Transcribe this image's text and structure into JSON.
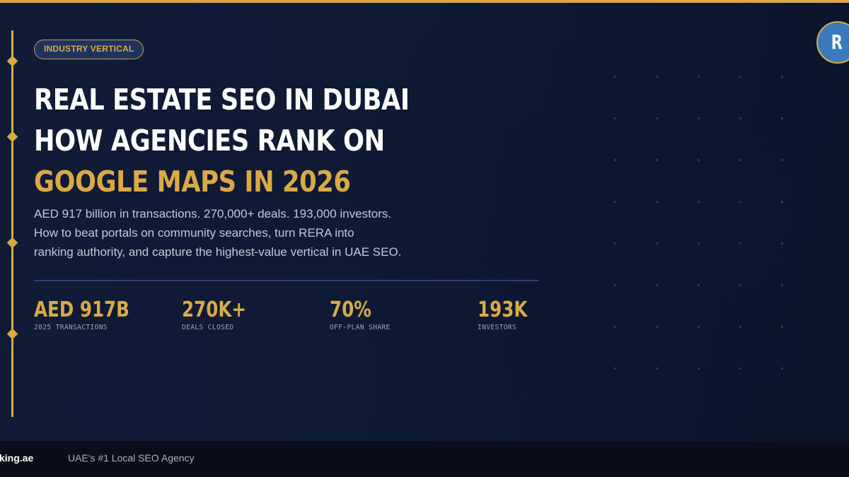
{
  "badge": {
    "label": "INDUSTRY VERTICAL"
  },
  "title": {
    "line1": "REAL ESTATE SEO IN DUBAI",
    "line2": "HOW AGENCIES RANK ON",
    "line3_highlight": "GOOGLE MAPS IN 2026"
  },
  "subtitle": {
    "line1": "AED 917 billion in transactions. 270,000+ deals. 193,000 investors.",
    "line2": "How to beat portals on community searches, turn RERA into",
    "line3": "ranking authority, and capture the highest-value vertical in UAE SEO."
  },
  "stats": [
    {
      "value": "AED 917B",
      "label": "2025 TRANSACTIONS"
    },
    {
      "value": "270K+",
      "label": "DEALS CLOSED"
    },
    {
      "value": "70%",
      "label": "OFF-PLAN SHARE"
    },
    {
      "value": "193K",
      "label": "INVESTORS"
    }
  ],
  "logo": {
    "letter": "R",
    "icon": "brand-logo-r"
  },
  "footer": {
    "brand": "king.ae",
    "tagline": "UAE's #1 Local SEO Agency"
  },
  "colors": {
    "background": "#0f1a33",
    "accent_gold": "#d9aa45",
    "logo_blue": "#3a7bbf",
    "badge_fill": "#1e3460",
    "footer": "#0a0e1a",
    "body_text": "#c2c8d6"
  }
}
